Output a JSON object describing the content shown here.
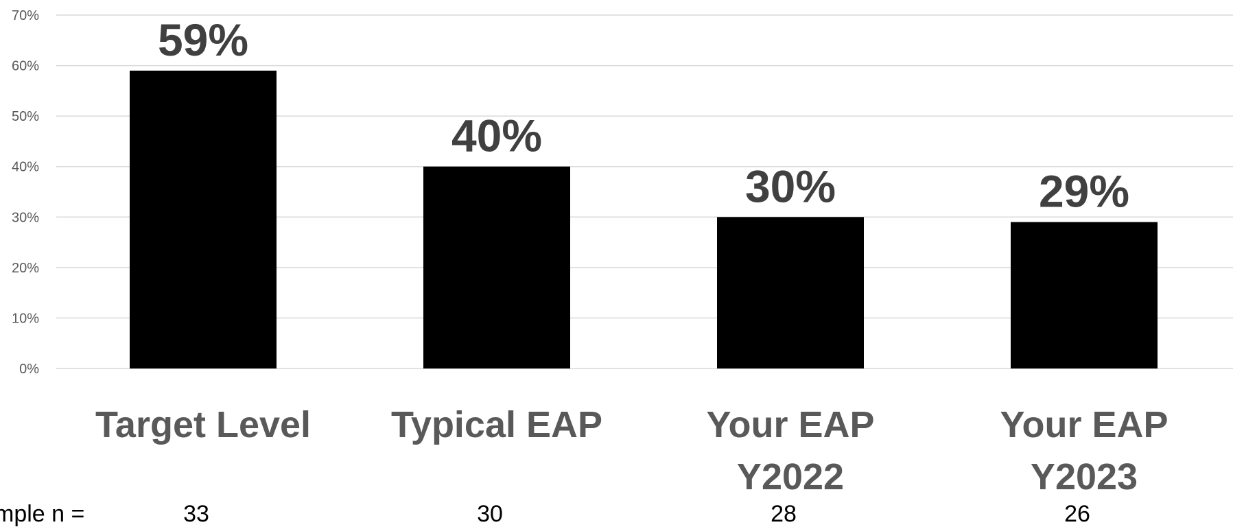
{
  "chart_data": {
    "type": "bar",
    "categories": [
      [
        "Target Level"
      ],
      [
        "Typical EAP"
      ],
      [
        "Your EAP",
        "Y2022"
      ],
      [
        "Your EAP",
        "Y2023"
      ]
    ],
    "values": [
      59,
      40,
      30,
      29
    ],
    "data_labels": [
      "59%",
      "40%",
      "30%",
      "29%"
    ],
    "ylim": [
      0,
      70
    ],
    "yticks": [
      "0%",
      "10%",
      "20%",
      "30%",
      "40%",
      "50%",
      "60%",
      "70%"
    ],
    "grid": true,
    "bar_color": "#000000",
    "grid_color": "#d9d9d9",
    "sample_label": "mple n =",
    "sample_n": [
      "33",
      "30",
      "28",
      "26"
    ]
  }
}
